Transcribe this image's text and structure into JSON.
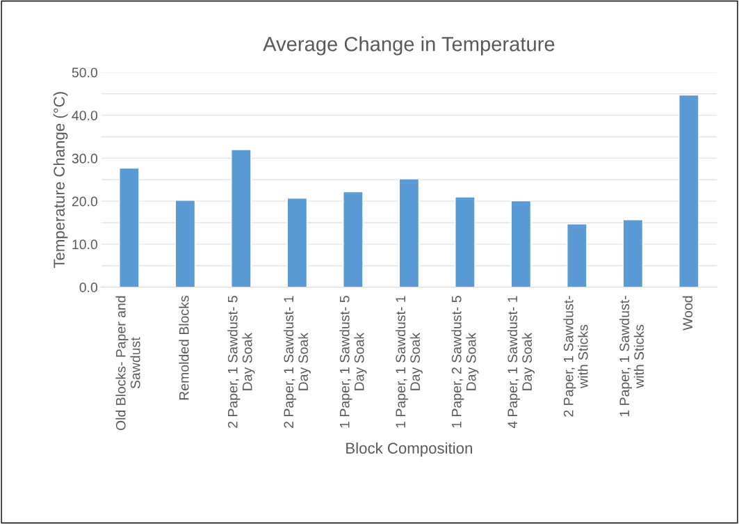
{
  "chart_data": {
    "type": "bar",
    "title": "Average Change in Temperature",
    "xlabel": "Block Composition",
    "ylabel": "Temperature Change (°C)",
    "categories": [
      "Old Blocks- Paper and Sawdust",
      "Remolded Blocks",
      "2 Paper, 1 Sawdust- 5 Day Soak",
      "2 Paper, 1 Sawdust- 1 Day Soak",
      "1 Paper, 1 Sawdust- 5 Day Soak",
      "1 Paper, 1 Sawdust- 1 Day Soak",
      "1 Paper, 2 Sawdust- 5 Day Soak",
      "4 Paper, 1 Sawdust- 1 Day Soak",
      "2 Paper, 1 Sawdust- with Sticks",
      "1 Paper, 1 Sawdust- with Sticks",
      "Wood"
    ],
    "values": [
      27.7,
      20.2,
      32.0,
      20.7,
      22.2,
      25.2,
      21.0,
      20.1,
      14.7,
      15.7,
      44.7
    ],
    "color": "#5b9bd5",
    "ylim": [
      0,
      50
    ],
    "yticks": [
      {
        "value": 0,
        "label": "0.0"
      },
      {
        "value": 5,
        "label": null
      },
      {
        "value": 10,
        "label": "10.0"
      },
      {
        "value": 15,
        "label": null
      },
      {
        "value": 20,
        "label": "20.0"
      },
      {
        "value": 25,
        "label": null
      },
      {
        "value": 30,
        "label": "30.0"
      },
      {
        "value": 35,
        "label": null
      },
      {
        "value": 40,
        "label": "40.0"
      },
      {
        "value": 45,
        "label": null
      },
      {
        "value": 50,
        "label": "50.0"
      }
    ],
    "grid": "y"
  }
}
